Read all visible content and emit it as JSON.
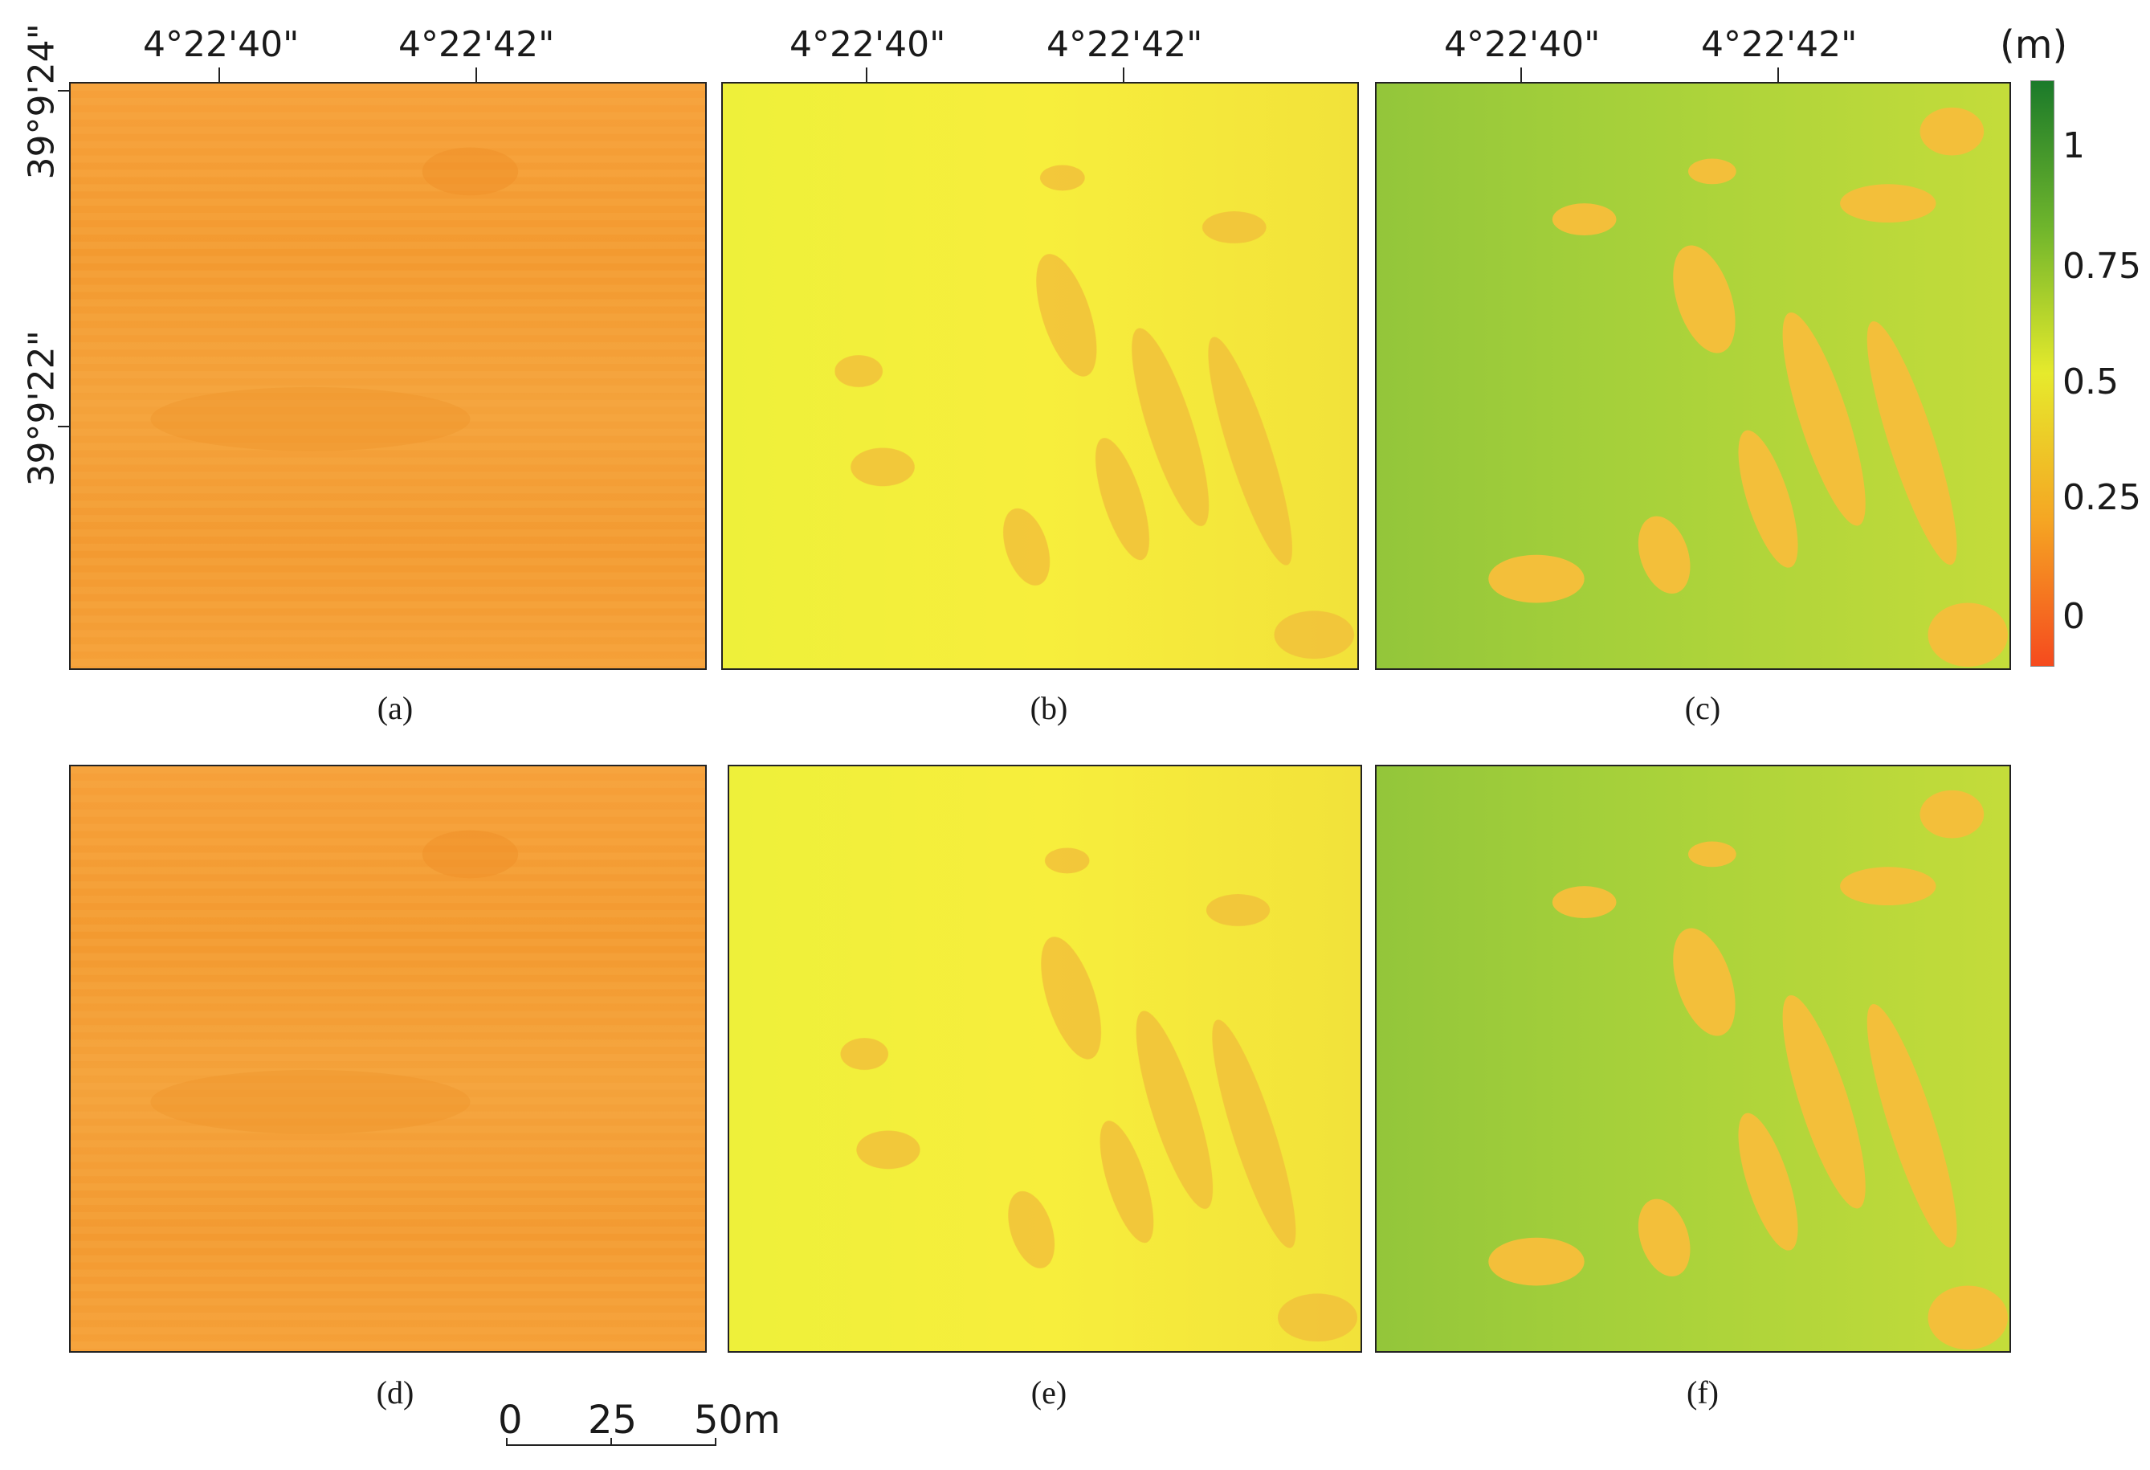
{
  "axes": {
    "lon_ticks": [
      "4°22'40\"",
      "4°22'42\""
    ],
    "lat_ticks": [
      "39°9'24\"",
      "39°9'22\""
    ]
  },
  "colorbar": {
    "unit": "(m)",
    "ticks": [
      "1",
      "0.75",
      "0.5",
      "0.25",
      "0"
    ],
    "colors": [
      "#1b7a2a",
      "#7fbf2a",
      "#e8e82a",
      "#f5a623",
      "#f54a1e"
    ]
  },
  "panels": [
    {
      "caption": "(a)",
      "style": "flat-orange"
    },
    {
      "caption": "(b)",
      "style": "yellow-rows"
    },
    {
      "caption": "(c)",
      "style": "green-rows"
    },
    {
      "caption": "(d)",
      "style": "flat-orange"
    },
    {
      "caption": "(e)",
      "style": "yellow-rows"
    },
    {
      "caption": "(f)",
      "style": "green-rows"
    }
  ],
  "scalebar": {
    "labels": [
      "0",
      "25",
      "50m"
    ]
  }
}
